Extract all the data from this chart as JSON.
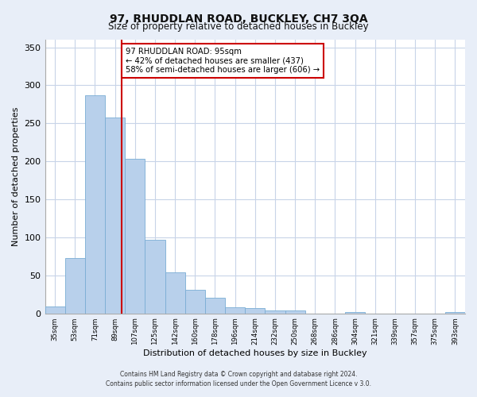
{
  "title": "97, RHUDDLAN ROAD, BUCKLEY, CH7 3QA",
  "subtitle": "Size of property relative to detached houses in Buckley",
  "xlabel": "Distribution of detached houses by size in Buckley",
  "ylabel": "Number of detached properties",
  "bar_labels": [
    "35sqm",
    "53sqm",
    "71sqm",
    "89sqm",
    "107sqm",
    "125sqm",
    "142sqm",
    "160sqm",
    "178sqm",
    "196sqm",
    "214sqm",
    "232sqm",
    "250sqm",
    "268sqm",
    "286sqm",
    "304sqm",
    "321sqm",
    "339sqm",
    "357sqm",
    "375sqm",
    "393sqm"
  ],
  "bar_values": [
    9,
    73,
    287,
    258,
    203,
    97,
    54,
    31,
    21,
    8,
    7,
    4,
    4,
    0,
    0,
    2,
    0,
    0,
    0,
    0,
    2
  ],
  "bar_color": "#b8d0eb",
  "bar_edge_color": "#7aadd4",
  "property_line_label": "97 RHUDDLAN ROAD: 95sqm",
  "annotation_line1": "← 42% of detached houses are smaller (437)",
  "annotation_line2": "58% of semi-detached houses are larger (606) →",
  "vline_color": "#cc0000",
  "box_edge_color": "#cc0000",
  "ylim": [
    0,
    360
  ],
  "yticks": [
    0,
    50,
    100,
    150,
    200,
    250,
    300,
    350
  ],
  "footer1": "Contains HM Land Registry data © Crown copyright and database right 2024.",
  "footer2": "Contains public sector information licensed under the Open Government Licence v 3.0.",
  "background_color": "#e8eef8",
  "plot_background": "#ffffff",
  "grid_color": "#c8d4e8"
}
